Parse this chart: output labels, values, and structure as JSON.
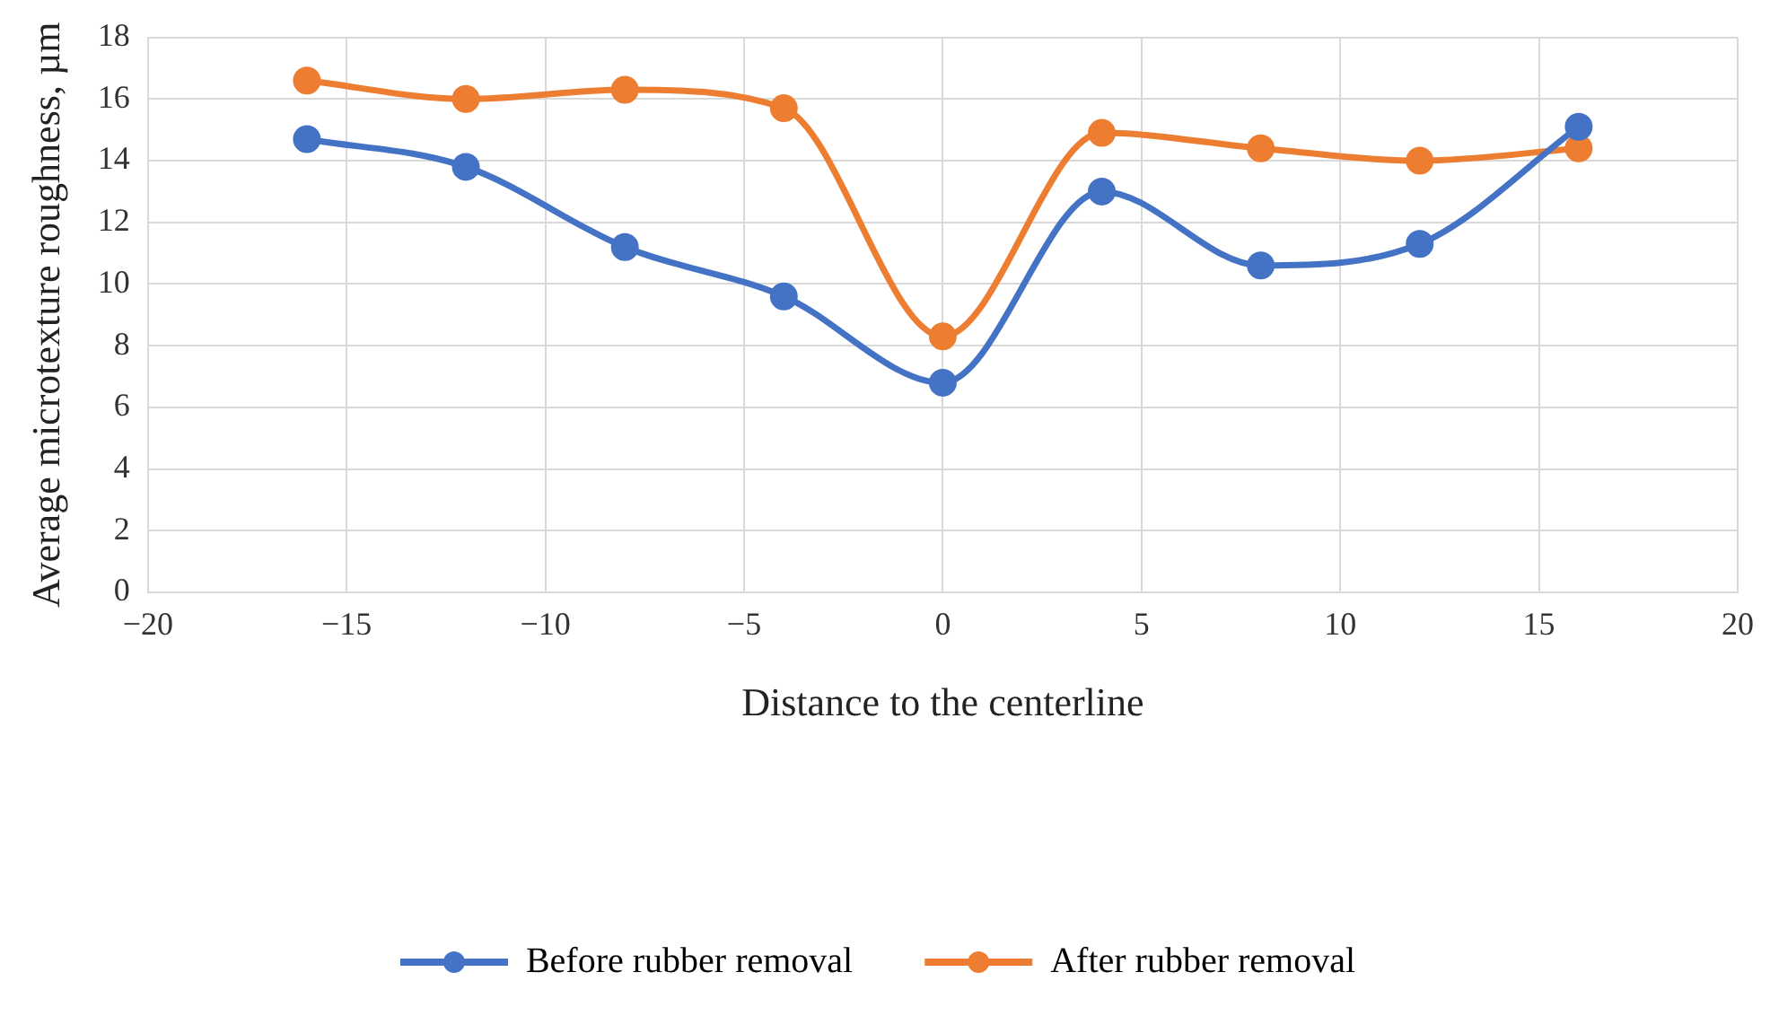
{
  "chart_data": {
    "type": "line",
    "xlabel": "Distance to the centerline",
    "ylabel": "Average microtexture roughness, µm",
    "x": [
      -16,
      -12,
      -8,
      -4,
      0,
      4,
      8,
      12,
      16
    ],
    "series": [
      {
        "name": "Before rubber removal",
        "color": "#4472c4",
        "values": [
          14.7,
          13.8,
          11.2,
          9.6,
          6.8,
          13.0,
          10.6,
          11.3,
          15.1
        ]
      },
      {
        "name": "After rubber removal",
        "color": "#ed7d31",
        "values": [
          16.6,
          16.0,
          16.3,
          15.7,
          8.3,
          14.9,
          14.4,
          14.0,
          14.4
        ]
      }
    ],
    "xlim": [
      -20,
      20
    ],
    "xticks": [
      -20,
      -15,
      -10,
      -5,
      0,
      5,
      10,
      15,
      20
    ],
    "ylim": [
      0,
      18
    ],
    "yticks": [
      0,
      2,
      4,
      6,
      8,
      10,
      12,
      14,
      16,
      18
    ],
    "grid": true,
    "legend": "bottom",
    "marker": "circle",
    "line_style": "solid"
  }
}
